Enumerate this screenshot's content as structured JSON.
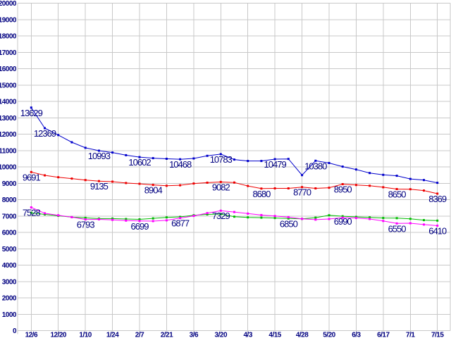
{
  "chart_data": {
    "type": "line",
    "title": "",
    "xlabel": "",
    "ylabel": "",
    "grid": true,
    "legend": "none",
    "background_color": "#ffffff",
    "grid_color": "#c8c8c8",
    "label_color": "#000080",
    "ylim": [
      0,
      20000
    ],
    "y_tick_step": 1000,
    "y_tick_labels": [
      "0",
      "1000",
      "2000",
      "3000",
      "4000",
      "5000",
      "6000",
      "7000",
      "8000",
      "9000",
      "10000",
      "11000",
      "12000",
      "13000",
      "14000",
      "15000",
      "16000",
      "17000",
      "18000",
      "19000",
      "20000"
    ],
    "x_tick_labels": [
      "12/6",
      "12/20",
      "1/10",
      "1/24",
      "2/7",
      "2/21",
      "3/6",
      "3/20",
      "4/3",
      "4/15",
      "4/28",
      "5/20",
      "6/3",
      "6/17",
      "7/1",
      "7/15"
    ],
    "points_per_tick_interval": 2,
    "n_points": 31,
    "series": [
      {
        "name": "blue",
        "color": "#0000cc",
        "marker": "square",
        "values": [
          13629,
          12369,
          11950,
          11510,
          11170,
          10993,
          10880,
          10720,
          10602,
          10540,
          10500,
          10468,
          10520,
          10680,
          10783,
          10450,
          10365,
          10365,
          10479,
          10490,
          9500,
          10380,
          10240,
          10020,
          9845,
          9630,
          9520,
          9460,
          9270,
          9200,
          9030
        ]
      },
      {
        "name": "red",
        "color": "#ee0000",
        "marker": "square",
        "values": [
          9691,
          9490,
          9370,
          9290,
          9200,
          9135,
          9100,
          9020,
          8970,
          8904,
          8850,
          8880,
          8990,
          9040,
          9082,
          9050,
          8840,
          8680,
          8690,
          8690,
          8770,
          8690,
          8730,
          8950,
          8900,
          8850,
          8760,
          8650,
          8640,
          8560,
          8369
        ]
      },
      {
        "name": "green",
        "color": "#00bb00",
        "marker": "square",
        "values": [
          7200,
          7100,
          7020,
          6930,
          6890,
          6845,
          6845,
          6820,
          6800,
          6860,
          6917,
          6950,
          7050,
          7100,
          7120,
          6960,
          6920,
          6900,
          6880,
          6850,
          6830,
          6900,
          7050,
          6990,
          6950,
          6920,
          6880,
          6870,
          6830,
          6750,
          6720
        ]
      },
      {
        "name": "magenta",
        "color": "#ff00ff",
        "marker": "square",
        "values": [
          7528,
          7170,
          7050,
          6930,
          6793,
          6800,
          6770,
          6720,
          6699,
          6690,
          6740,
          6877,
          7010,
          7180,
          7329,
          7248,
          7150,
          7063,
          7003,
          6934,
          6830,
          6780,
          6820,
          6900,
          6880,
          6820,
          6700,
          6550,
          6560,
          6480,
          6410
        ]
      }
    ],
    "point_labels": [
      {
        "series": "blue",
        "index": 0,
        "text": "13629"
      },
      {
        "series": "blue",
        "index": 1,
        "text": "12369"
      },
      {
        "series": "blue",
        "index": 5,
        "text": "10993"
      },
      {
        "series": "blue",
        "index": 8,
        "text": "10602"
      },
      {
        "series": "blue",
        "index": 11,
        "text": "10468"
      },
      {
        "series": "blue",
        "index": 14,
        "text": "10783"
      },
      {
        "series": "blue",
        "index": 18,
        "text": "10479"
      },
      {
        "series": "blue",
        "index": 21,
        "text": "10380"
      },
      {
        "series": "red",
        "index": 0,
        "text": "9691"
      },
      {
        "series": "red",
        "index": 5,
        "text": "9135"
      },
      {
        "series": "red",
        "index": 9,
        "text": "8904"
      },
      {
        "series": "red",
        "index": 14,
        "text": "9082"
      },
      {
        "series": "red",
        "index": 17,
        "text": "8680"
      },
      {
        "series": "red",
        "index": 20,
        "text": "8770"
      },
      {
        "series": "red",
        "index": 23,
        "text": "8950"
      },
      {
        "series": "red",
        "index": 27,
        "text": "8650"
      },
      {
        "series": "red",
        "index": 30,
        "text": "8369"
      },
      {
        "series": "magenta",
        "index": 0,
        "text": "7528"
      },
      {
        "series": "magenta",
        "index": 4,
        "text": "6793"
      },
      {
        "series": "magenta",
        "index": 8,
        "text": "6699"
      },
      {
        "series": "magenta",
        "index": 11,
        "text": "6877"
      },
      {
        "series": "magenta",
        "index": 14,
        "text": "7329"
      },
      {
        "series": "green",
        "index": 19,
        "text": "6850"
      },
      {
        "series": "green",
        "index": 23,
        "text": "6990"
      },
      {
        "series": "magenta",
        "index": 27,
        "text": "6550"
      },
      {
        "series": "magenta",
        "index": 30,
        "text": "6410"
      }
    ]
  }
}
